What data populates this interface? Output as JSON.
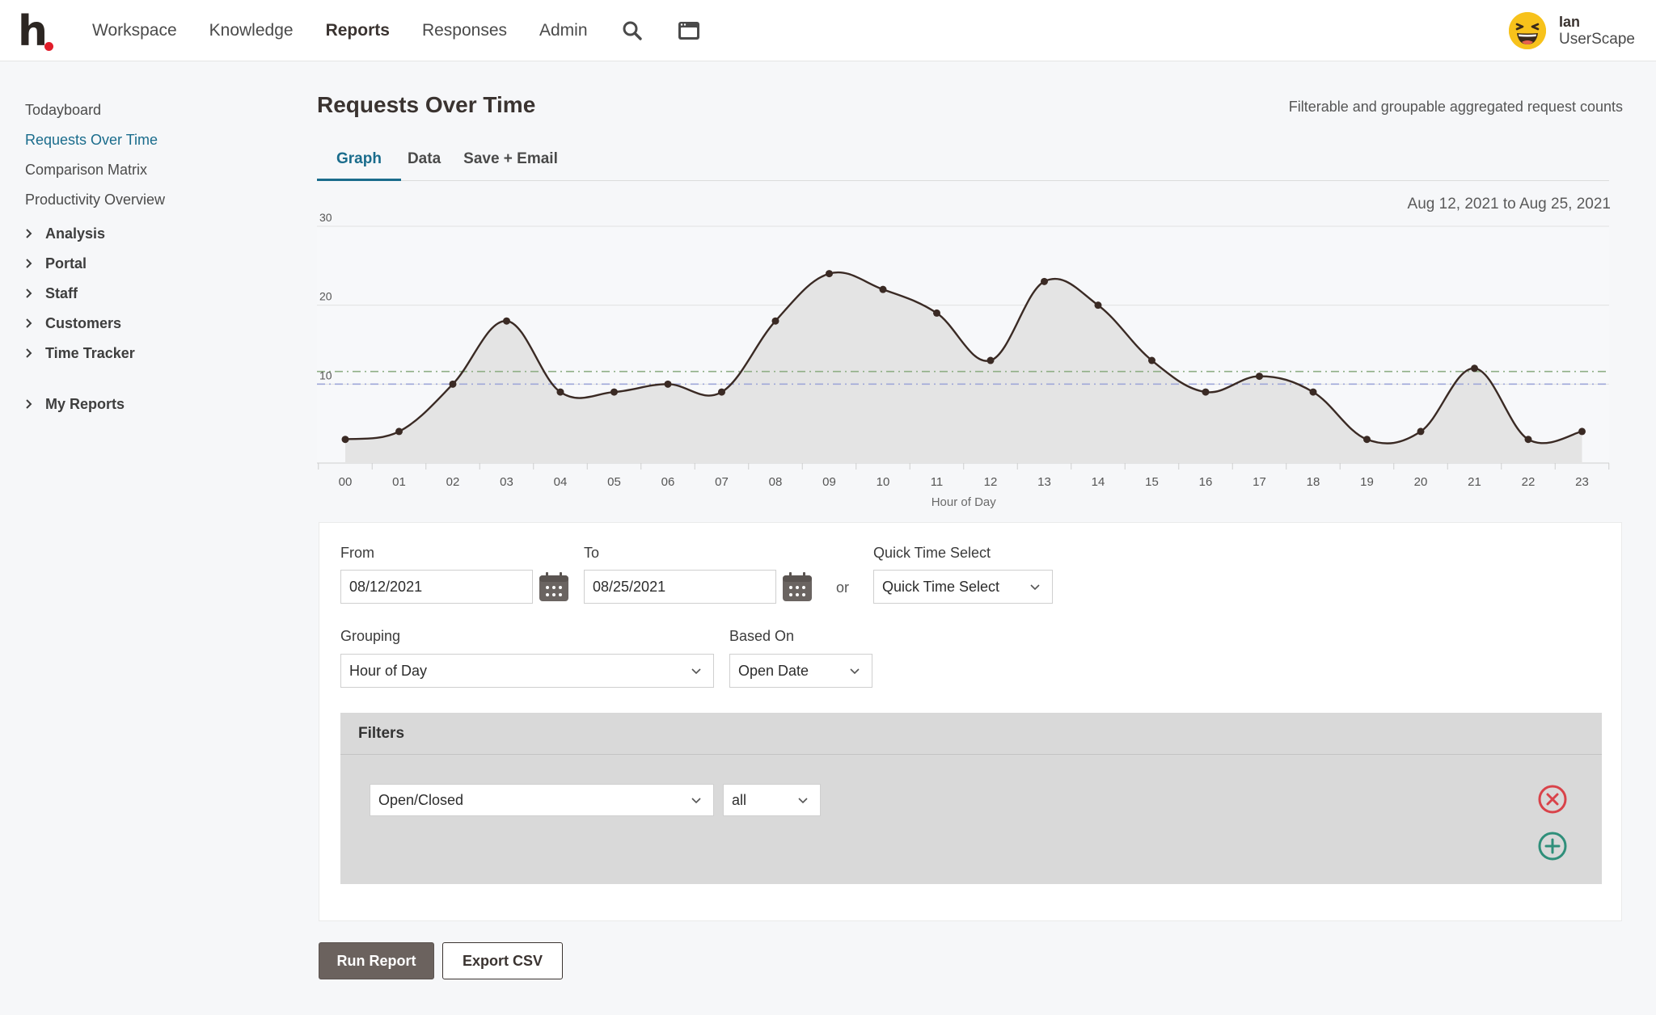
{
  "app": {
    "logo_letter": "h"
  },
  "nav": {
    "items": [
      {
        "label": "Workspace",
        "active": false
      },
      {
        "label": "Knowledge",
        "active": false
      },
      {
        "label": "Reports",
        "active": true
      },
      {
        "label": "Responses",
        "active": false
      },
      {
        "label": "Admin",
        "active": false
      }
    ],
    "icons": [
      "search-icon",
      "inbox-icon"
    ]
  },
  "user": {
    "name": "Ian",
    "org": "UserScape",
    "avatar": "laughing-emoji"
  },
  "sidebar": {
    "links": [
      {
        "label": "Todayboard",
        "active": false
      },
      {
        "label": "Requests Over Time",
        "active": true
      },
      {
        "label": "Comparison Matrix",
        "active": false
      },
      {
        "label": "Productivity Overview",
        "active": false
      }
    ],
    "groups": [
      "Analysis",
      "Portal",
      "Staff",
      "Customers",
      "Time Tracker"
    ],
    "my_reports": "My Reports"
  },
  "page": {
    "title": "Requests Over Time",
    "subtitle": "Filterable and groupable aggregated request counts",
    "tabs": [
      "Graph",
      "Data",
      "Save + Email"
    ],
    "active_tab": "Graph",
    "date_range": "Aug 12, 2021 to Aug 25, 2021"
  },
  "chart_data": {
    "type": "area",
    "xlabel": "Hour of Day",
    "ylabel": "",
    "categories": [
      "00",
      "01",
      "02",
      "03",
      "04",
      "05",
      "06",
      "07",
      "08",
      "09",
      "10",
      "11",
      "12",
      "13",
      "14",
      "15",
      "16",
      "17",
      "18",
      "19",
      "20",
      "21",
      "22",
      "23"
    ],
    "values": [
      3,
      4,
      10,
      18,
      9,
      9,
      10,
      9,
      18,
      24,
      22,
      19,
      13,
      23,
      20,
      13,
      9,
      11,
      9,
      3,
      4,
      12,
      3,
      4
    ],
    "yticks": [
      10,
      20,
      30
    ],
    "ylim": [
      0,
      30
    ],
    "reference_lines": [
      {
        "value": 11.6,
        "color": "#8fae86"
      },
      {
        "value": 10.0,
        "color": "#9fa8d8"
      }
    ],
    "line_color": "#3a2a24",
    "fill_color": "#e4e4e4",
    "grid": true
  },
  "form": {
    "from_label": "From",
    "from_value": "08/12/2021",
    "to_label": "To",
    "to_value": "08/25/2021",
    "or_text": "or",
    "quick_label": "Quick Time Select",
    "quick_value": "Quick Time Select",
    "grouping_label": "Grouping",
    "grouping_value": "Hour of Day",
    "based_on_label": "Based On",
    "based_on_value": "Open Date",
    "filters_title": "Filters",
    "filter_field": "Open/Closed",
    "filter_value": "all",
    "remove_color": "#d9434a",
    "add_color": "#2f8f7a"
  },
  "actions": {
    "run_label": "Run Report",
    "export_label": "Export CSV"
  }
}
